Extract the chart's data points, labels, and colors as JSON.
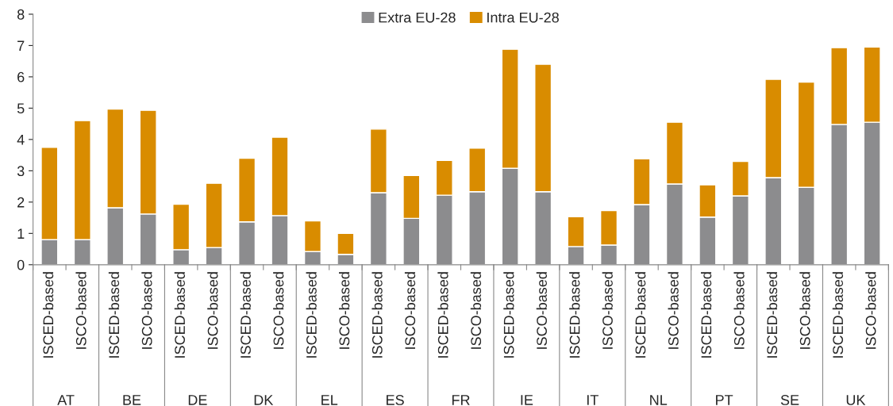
{
  "chart_data": {
    "type": "bar",
    "stacked": true,
    "categories": [
      "ISCED-based",
      "ISCO-based",
      "ISCED-based",
      "ISCO-based",
      "ISCED-based",
      "ISCO-based",
      "ISCED-based",
      "ISCO-based",
      "ISCED-based",
      "ISCO-based",
      "ISCED-based",
      "ISCO-based",
      "ISCED-based",
      "ISCO-based",
      "ISCED-based",
      "ISCO-based",
      "ISCED-based",
      "ISCO-based",
      "ISCED-based",
      "ISCO-based",
      "ISCED-based",
      "ISCO-based",
      "ISCED-based",
      "ISCO-based",
      "ISCED-based",
      "ISCO-based"
    ],
    "annotations": [
      "AT",
      "BE",
      "DE",
      "DK",
      "EL",
      "ES",
      "FR",
      "IE",
      "IT",
      "NL",
      "PT",
      "SE",
      "UK"
    ],
    "series": [
      {
        "name": "Extra EU-28",
        "color": "#8c8c8e",
        "values": [
          0.8,
          0.8,
          1.82,
          1.62,
          0.48,
          0.55,
          1.37,
          1.57,
          0.42,
          0.33,
          2.3,
          1.48,
          2.22,
          2.33,
          3.08,
          2.33,
          0.58,
          0.63,
          1.92,
          2.58,
          1.52,
          2.2,
          2.78,
          2.47,
          4.48,
          4.55
        ]
      },
      {
        "name": "Intra EU-28",
        "color": "#d98c00",
        "values": [
          2.95,
          3.8,
          3.15,
          3.31,
          1.45,
          2.05,
          2.03,
          2.5,
          0.98,
          0.67,
          2.03,
          1.37,
          1.11,
          1.39,
          3.8,
          4.07,
          0.95,
          1.1,
          1.46,
          1.97,
          1.03,
          1.1,
          3.14,
          3.36,
          2.45,
          2.4
        ]
      }
    ],
    "ylim": [
      0,
      8
    ],
    "yticks": [
      0,
      1,
      2,
      3,
      4,
      5,
      6,
      7,
      8
    ],
    "grid": false,
    "legend": "top"
  }
}
